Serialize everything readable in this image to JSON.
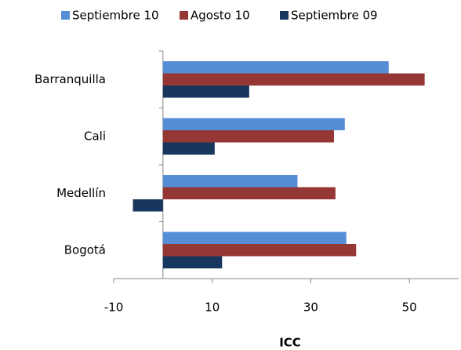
{
  "chart_data": {
    "type": "hbar",
    "xlabel": "ICC",
    "categories": [
      "Barranquilla",
      "Cali",
      "Medellín",
      "Bogotá"
    ],
    "series": [
      {
        "name": "Septiembre 10",
        "color": "#558ed5",
        "values": [
          45.8,
          36.9,
          27.3,
          37.2
        ]
      },
      {
        "name": "Agosto 10",
        "color": "#953735",
        "values": [
          53.1,
          34.7,
          35,
          39.2
        ]
      },
      {
        "name": "Septiembre 09",
        "color": "#17375e",
        "values": [
          17.5,
          10.5,
          -6.1,
          12
        ]
      }
    ],
    "xlim": [
      -10,
      60
    ],
    "xticks": [
      -10,
      10,
      30,
      50
    ],
    "legend": "top"
  }
}
